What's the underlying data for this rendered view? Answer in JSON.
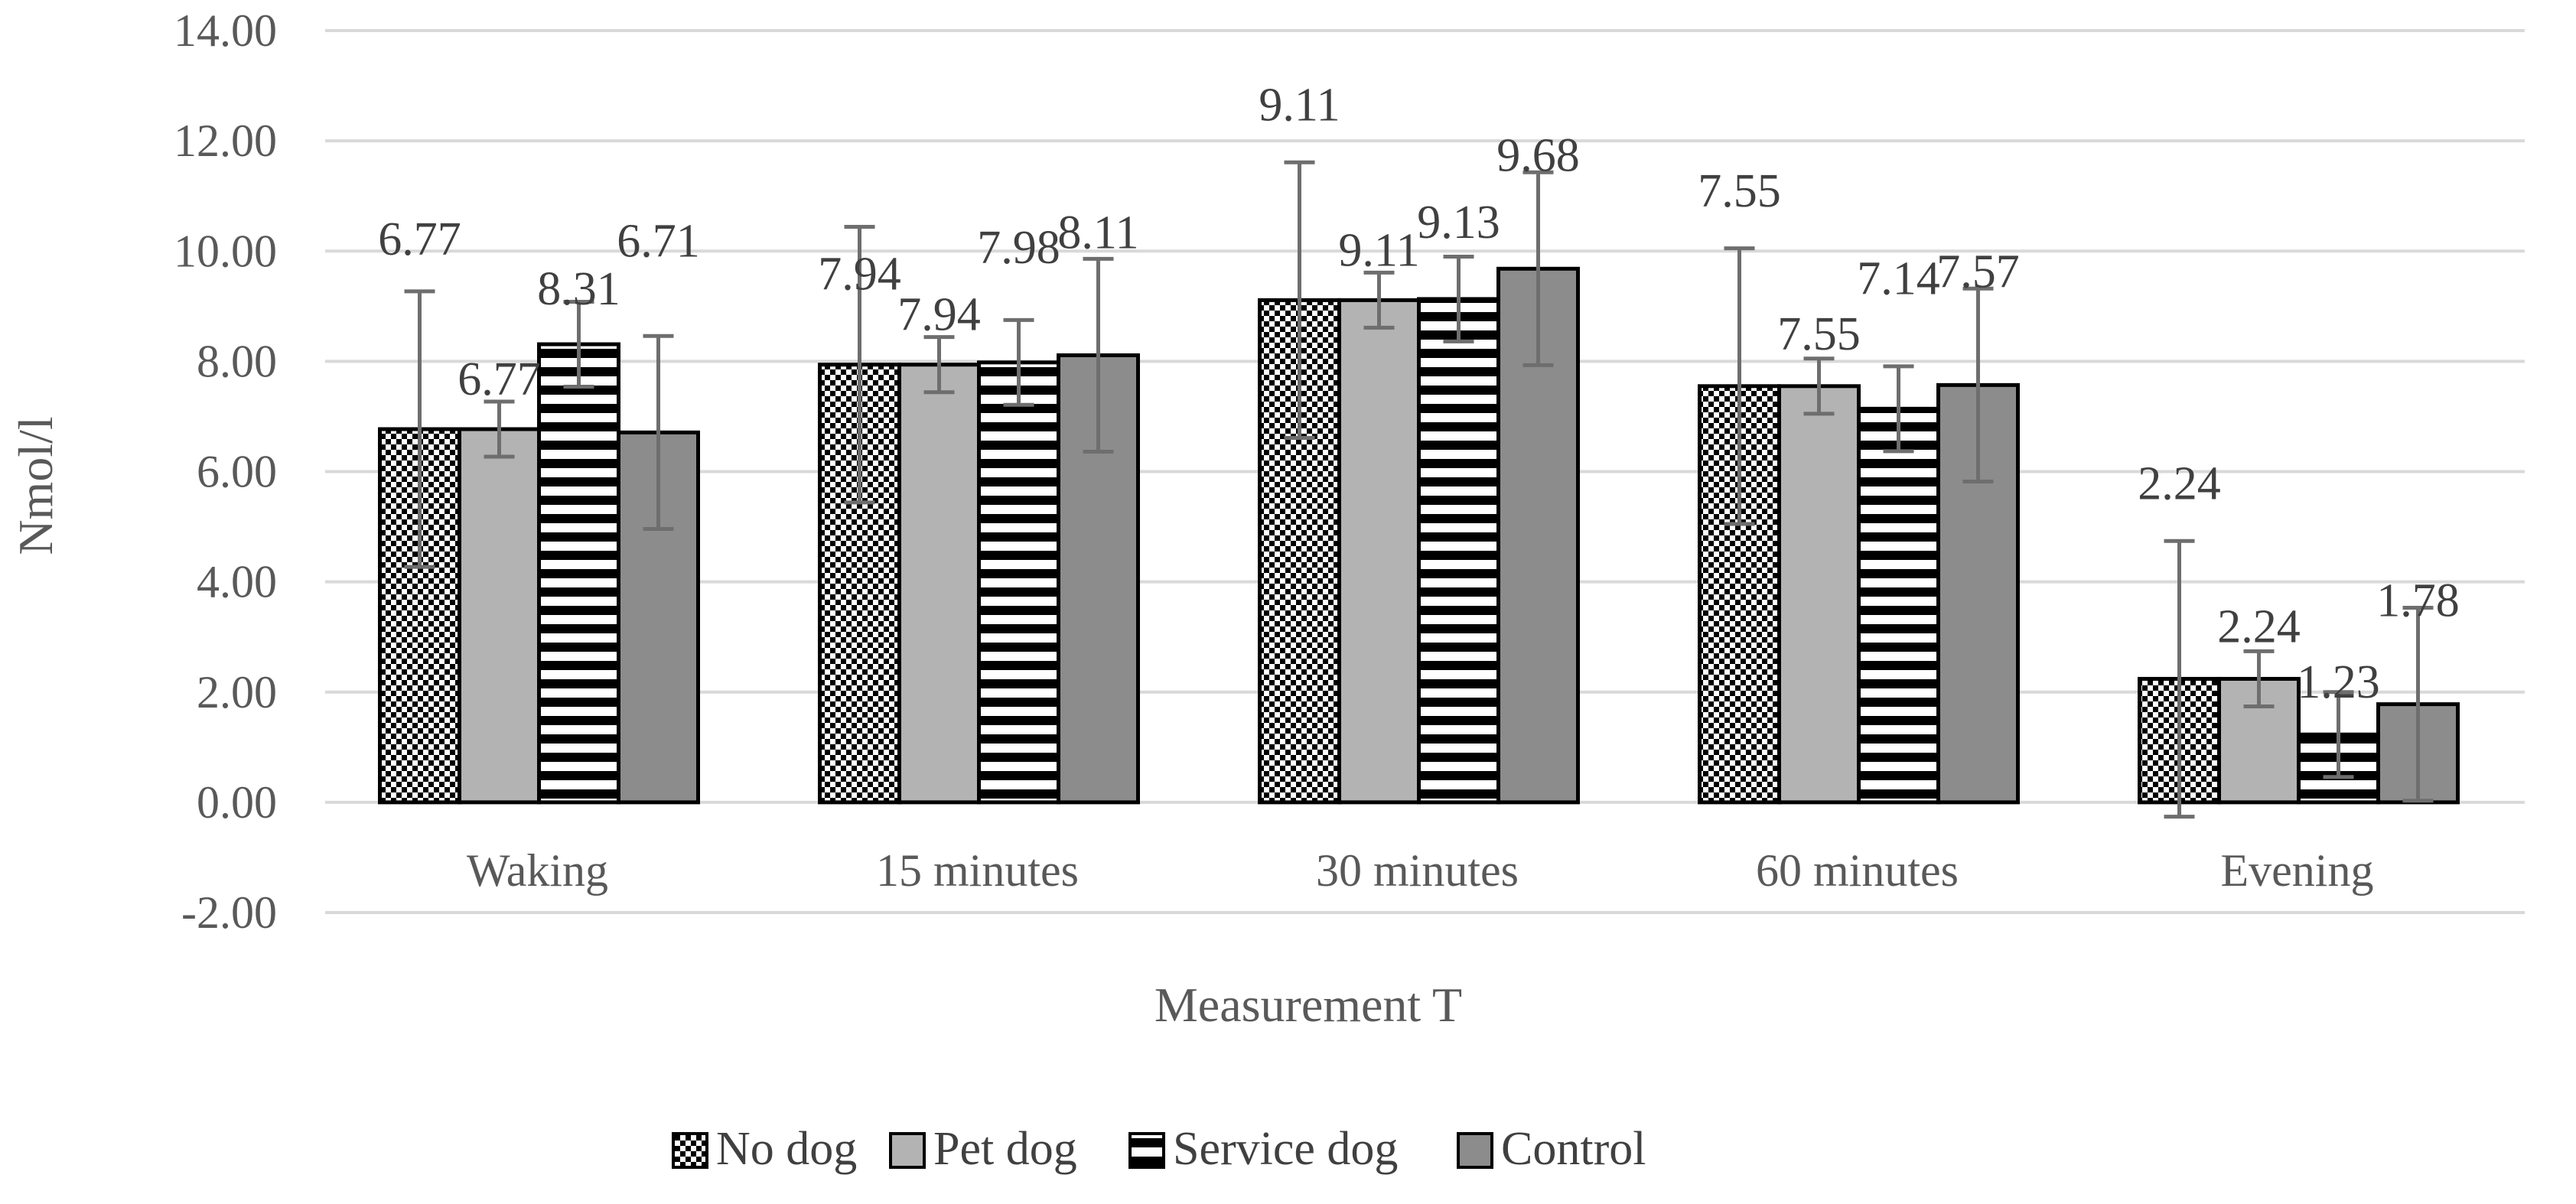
{
  "chart_data": {
    "type": "bar",
    "title": "",
    "xlabel": "Measurement T",
    "ylabel": "Nmol/l",
    "ylim": [
      -2,
      14
    ],
    "ytick_step": 2,
    "grid": true,
    "legend_position": "bottom",
    "categories": [
      "Waking",
      "15 minutes",
      "30 minutes",
      "60 minutes",
      "Evening"
    ],
    "y_ticks": [
      "-2.00",
      "0.00",
      "2.00",
      "4.00",
      "6.00",
      "8.00",
      "10.00",
      "12.00",
      "14.00"
    ],
    "series": [
      {
        "name": "No dog",
        "pattern": "checker",
        "values": [
          6.77,
          7.94,
          9.11,
          7.55,
          2.24
        ],
        "labels": [
          "6.77",
          "7.94",
          "9.11",
          "7.55",
          "2.24"
        ],
        "error": [
          2.5,
          2.5,
          2.5,
          2.5,
          2.5
        ]
      },
      {
        "name": "Pet dog",
        "pattern": "solid-light",
        "values": [
          6.77,
          7.94,
          9.11,
          7.55,
          2.24
        ],
        "labels": [
          "6.77",
          "7.94",
          "9.11",
          "7.55",
          "2.24"
        ],
        "error": [
          0.5,
          0.5,
          0.5,
          0.5,
          0.5
        ]
      },
      {
        "name": "Service dog",
        "pattern": "horizontal-stripes",
        "values": [
          8.31,
          7.98,
          9.13,
          7.14,
          1.23
        ],
        "labels": [
          "8.31",
          "7.98",
          "9.13",
          "7.14",
          "1.23"
        ],
        "error": [
          0.77,
          0.77,
          0.77,
          0.77,
          0.77
        ]
      },
      {
        "name": "Control",
        "pattern": "solid-dark",
        "values": [
          6.71,
          8.11,
          9.68,
          7.57,
          1.78
        ],
        "labels": [
          "6.71",
          "8.11",
          "9.68",
          "7.57",
          "1.78"
        ],
        "error": [
          1.75,
          1.75,
          1.75,
          1.75,
          1.75
        ]
      }
    ]
  },
  "colors": {
    "grid": "#d9d9d9",
    "bar_outline": "#000000",
    "pet_dog_fill": "#b3b3b3",
    "control_fill": "#8c8c8c",
    "error_bar": "#6e6e6e",
    "text": "#595959"
  }
}
